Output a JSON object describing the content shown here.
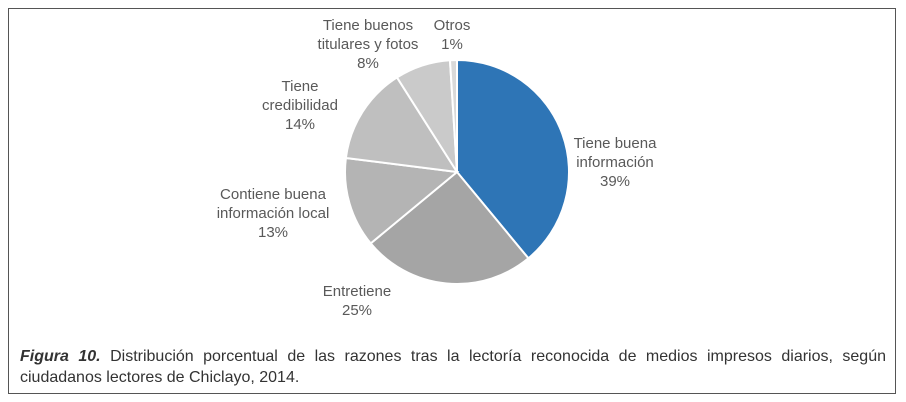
{
  "chart_data": {
    "type": "pie",
    "categories": [
      "Tiene buena información",
      "Entretiene",
      "Contiene buena información local",
      "Tiene credibilidad",
      "Tiene buenos titulares y fotos",
      "Otros"
    ],
    "values": [
      39,
      25,
      13,
      14,
      8,
      1
    ],
    "value_labels": [
      "39%",
      "25%",
      "13%",
      "14%",
      "8%",
      "1%"
    ],
    "colors": [
      "#2e75b6",
      "#a5a5a5",
      "#b4b4b4",
      "#bfbfbf",
      "#cacaca",
      "#d9d9d9"
    ]
  },
  "caption": {
    "label": "Figura 10.",
    "text": " Distribución porcentual de las razones tras la lectoría reconocida de medios impresos diarios, según ciudadanos lectores de Chiclayo, 2014."
  }
}
